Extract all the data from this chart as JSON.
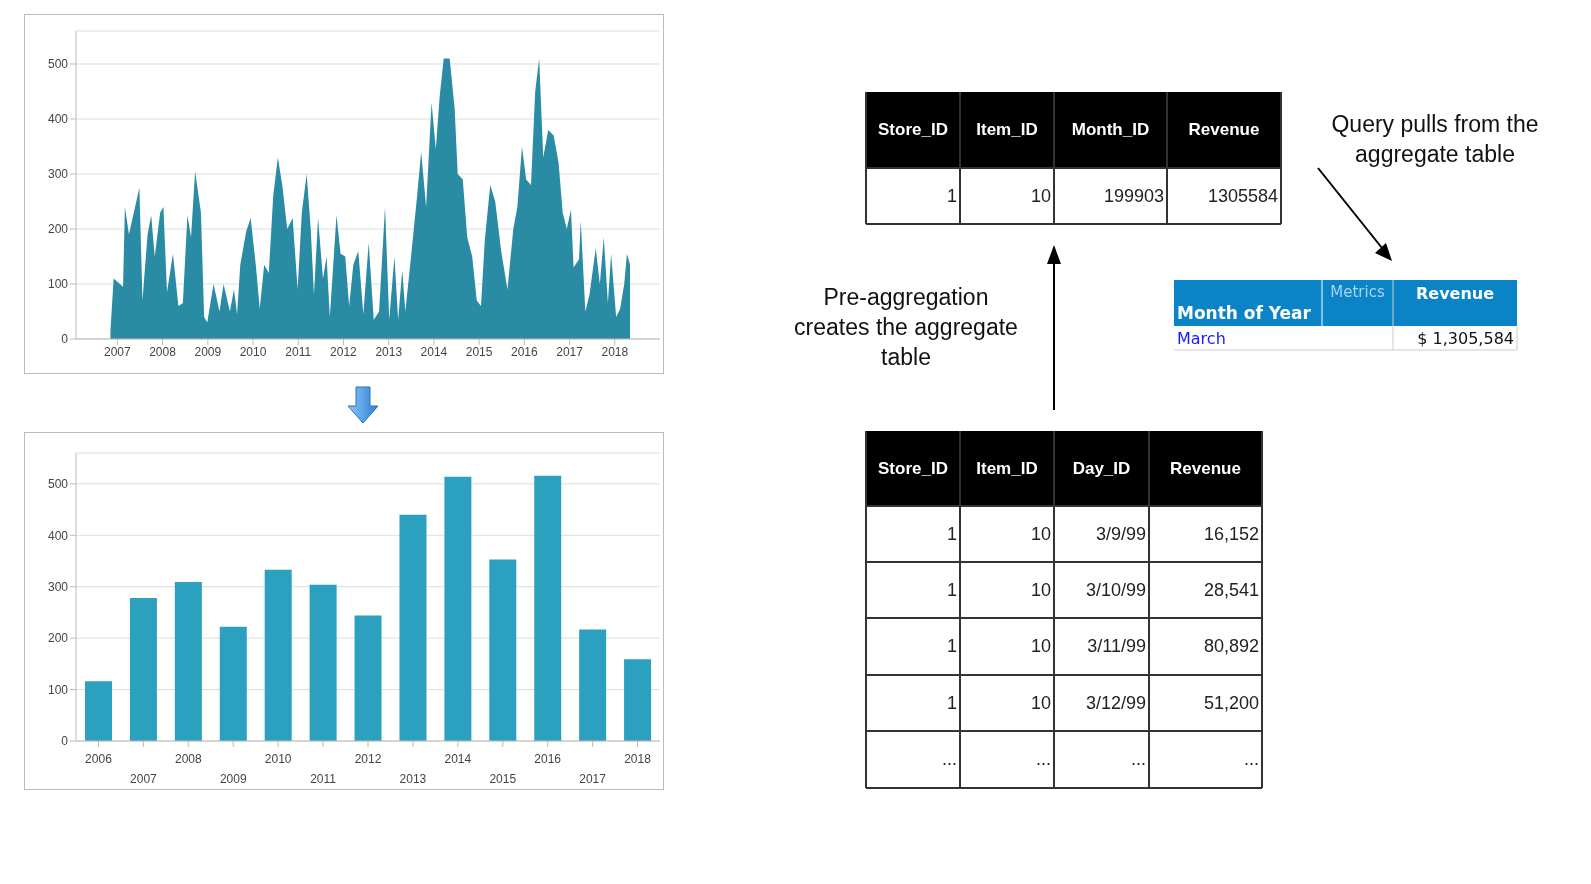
{
  "chart_data": [
    {
      "type": "area",
      "color": "#2a8ba4",
      "grid": "y",
      "xlim": [
        "2006-02",
        "2019-01"
      ],
      "ylim": [
        0,
        560
      ],
      "xticks": [
        "2007",
        "2008",
        "2009",
        "2010",
        "2011",
        "2012",
        "2013",
        "2014",
        "2015",
        "2016",
        "2017",
        "2018"
      ],
      "yticks": [
        0,
        100,
        200,
        300,
        400,
        500
      ],
      "x": [
        "2006-11-06",
        "2006-12-02",
        "2007-02-16",
        "2007-03-03",
        "2007-04-05",
        "2007-05-04",
        "2007-06-28",
        "2007-07-23",
        "2007-09-02",
        "2007-10-01",
        "2007-10-30",
        "2007-12-13",
        "2008-01-08",
        "2008-02-06",
        "2008-03-25",
        "2008-05-08",
        "2008-06-13",
        "2008-07-20",
        "2008-08-18",
        "2008-09-20",
        "2008-10-15",
        "2008-11-06",
        "2008-12-02",
        "2008-12-27",
        "2009-02-16",
        "2009-04-05",
        "2009-05-08",
        "2009-06-28",
        "2009-07-31",
        "2009-08-25",
        "2009-09-20",
        "2009-11-06",
        "2009-12-13",
        "2010-01-23",
        "2010-02-24",
        "2010-04-01",
        "2010-05-08",
        "2010-06-13",
        "2010-07-20",
        "2010-08-25",
        "2010-10-04",
        "2010-11-17",
        "2010-12-27",
        "2011-01-30",
        "2011-03-10",
        "2011-04-12",
        "2011-05-08",
        "2011-06-10",
        "2011-07-20",
        "2011-08-18",
        "2011-09-13",
        "2011-11-06",
        "2011-12-09",
        "2012-01-16",
        "2012-02-16",
        "2012-03-21",
        "2012-04-30",
        "2012-06-10",
        "2012-07-23",
        "2012-09-02",
        "2012-10-15",
        "2012-12-02",
        "2013-01-05",
        "2013-02-16",
        "2013-03-18",
        "2013-04-20",
        "2013-05-15",
        "2013-06-28",
        "2013-08-18",
        "2013-09-20",
        "2013-10-30",
        "2013-12-13",
        "2014-01-16",
        "2014-02-16",
        "2014-03-21",
        "2014-05-08",
        "2014-06-17",
        "2014-07-12",
        "2014-08-22",
        "2014-09-27",
        "2014-11-06",
        "2014-12-13",
        "2015-01-16",
        "2015-02-16",
        "2015-04-01",
        "2015-05-11",
        "2015-06-28",
        "2015-08-18",
        "2015-10-04",
        "2015-11-06",
        "2015-12-13",
        "2016-01-16",
        "2016-02-24",
        "2016-03-29",
        "2016-04-30",
        "2016-06-02",
        "2016-07-12",
        "2016-08-25",
        "2016-10-04",
        "2016-11-06",
        "2016-12-09",
        "2017-01-12",
        "2017-02-02",
        "2017-03-18",
        "2017-04-01",
        "2017-05-08",
        "2017-06-10",
        "2017-07-31",
        "2017-09-02",
        "2017-10-04",
        "2017-11-06",
        "2017-12-02",
        "2018-01-12",
        "2018-02-13",
        "2018-03-18",
        "2018-04-09",
        "2018-05-04"
      ],
      "values": [
        15,
        110,
        95,
        240,
        190,
        220,
        275,
        70,
        190,
        225,
        150,
        230,
        240,
        85,
        155,
        60,
        65,
        225,
        185,
        305,
        265,
        230,
        40,
        30,
        100,
        50,
        100,
        50,
        90,
        45,
        135,
        195,
        220,
        135,
        55,
        135,
        120,
        260,
        330,
        280,
        200,
        220,
        90,
        230,
        300,
        200,
        80,
        220,
        110,
        150,
        40,
        225,
        155,
        150,
        60,
        135,
        160,
        45,
        175,
        35,
        50,
        240,
        35,
        150,
        35,
        125,
        50,
        145,
        260,
        340,
        240,
        430,
        345,
        440,
        510,
        510,
        420,
        300,
        290,
        185,
        150,
        70,
        60,
        180,
        280,
        250,
        160,
        90,
        200,
        240,
        350,
        290,
        280,
        450,
        510,
        330,
        380,
        370,
        320,
        230,
        200,
        235,
        130,
        145,
        215,
        50,
        80,
        165,
        100,
        185,
        65,
        155,
        40,
        55,
        100,
        155,
        135
      ]
    },
    {
      "type": "bar",
      "color": "#2ba1bf",
      "grid": "y",
      "ylim": [
        0,
        560
      ],
      "yticks": [
        0,
        100,
        200,
        300,
        400,
        500
      ],
      "categories": [
        "2006",
        "2007",
        "2008",
        "2009",
        "2010",
        "2011",
        "2012",
        "2013",
        "2014",
        "2015",
        "2016",
        "2017",
        "2018"
      ],
      "values": [
        116,
        278,
        309,
        222,
        333,
        304,
        244,
        440,
        514,
        353,
        516,
        217,
        159
      ]
    },
    {
      "type": "other",
      "annotations": [
        "Store_ID",
        "Item_ID",
        "Month_ID",
        "Revenue",
        "1",
        "10",
        "199903",
        "1305584",
        "Store_ID",
        "Item_ID",
        "Day_ID",
        "Revenue",
        "1",
        "10",
        "3/9/99",
        "16,152",
        "1",
        "10",
        "3/10/99",
        "28,541",
        "1",
        "10",
        "3/11/99",
        "80,892",
        "1",
        "10",
        "3/12/99",
        "51,200",
        "...",
        "...",
        "...",
        "...",
        "Month of Year",
        "Metrics",
        "Revenue",
        "March",
        "$  1,305,584",
        "Pre-aggregation creates the aggregate table",
        "Query pulls from the aggregate table"
      ]
    }
  ]
}
